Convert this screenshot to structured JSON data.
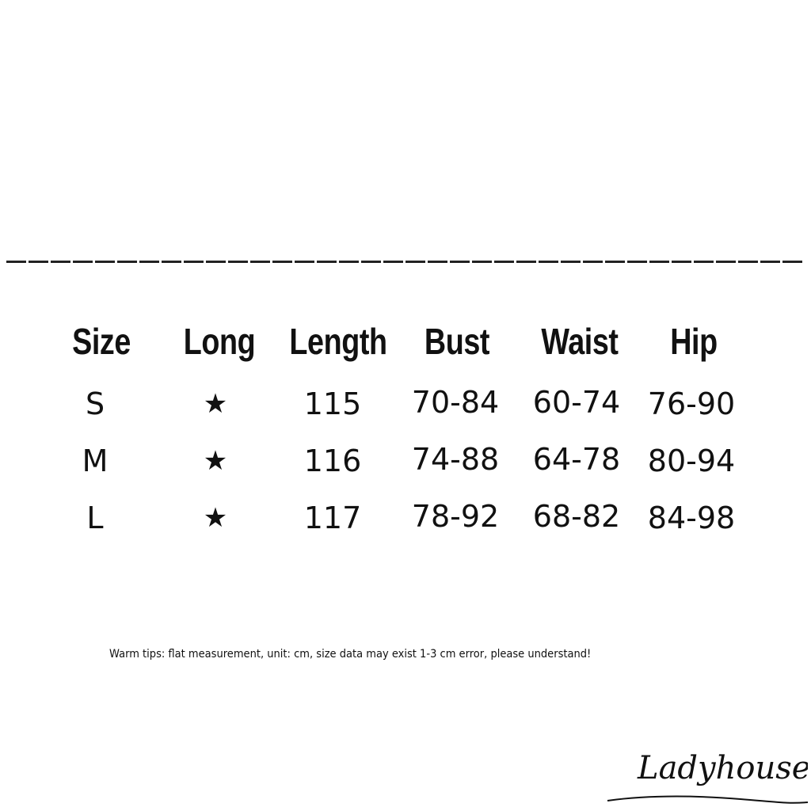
{
  "table": {
    "headers": [
      "Size",
      "Long",
      "Length",
      "Bust",
      "Waist",
      "Hip"
    ],
    "rows": [
      {
        "size": "S",
        "long": "★",
        "length": "115",
        "bust": "70-84",
        "waist": "60-74",
        "hip": "76-90"
      },
      {
        "size": "M",
        "long": "★",
        "length": "116",
        "bust": "74-88",
        "waist": "64-78",
        "hip": "80-94"
      },
      {
        "size": "L",
        "long": "★",
        "length": "117",
        "bust": "78-92",
        "waist": "68-82",
        "hip": "84-98"
      }
    ]
  },
  "tip": "Warm tips: flat measurement, unit: cm, size data may exist 1-3 cm error, please understand!",
  "logo": {
    "text": "Ladyhouse"
  }
}
